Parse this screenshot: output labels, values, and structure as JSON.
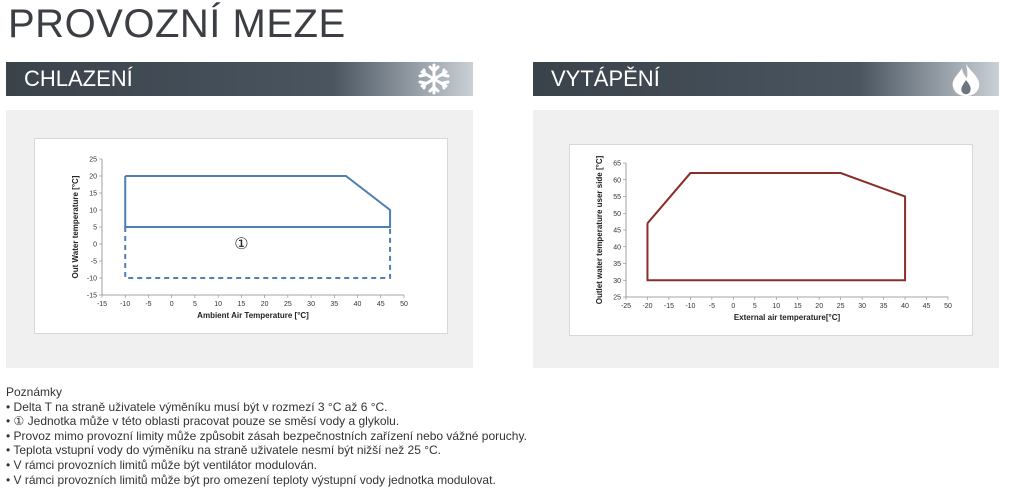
{
  "page_title": "PROVOZNÍ MEZE",
  "sections": {
    "cooling": {
      "title": "CHLAZENÍ",
      "icon": "snowflake-icon"
    },
    "heating": {
      "title": "VYTÁPĚNÍ",
      "icon": "flame-icon"
    }
  },
  "colors": {
    "cooling_line": "#4f7fb3",
    "heating_line": "#8b2e2a",
    "header_bar": "#3a424a",
    "panel_bg": "#f0f0f0"
  },
  "chart_data": [
    {
      "type": "line",
      "xlabel": "Ambient Air Temperature [°C]",
      "ylabel": "Out Water temperature [°C]",
      "xlim": [
        -15,
        50
      ],
      "ylim": [
        -15,
        25
      ],
      "x_ticks": [
        -15,
        -10,
        -5,
        0,
        5,
        10,
        15,
        20,
        25,
        30,
        35,
        40,
        45,
        50
      ],
      "y_ticks": [
        -15,
        -10,
        -5,
        0,
        5,
        10,
        15,
        20,
        25
      ],
      "grid": false,
      "annotation": "①",
      "series": [
        {
          "style": "solid",
          "x": [
            -10,
            37.5,
            47,
            47,
            -10,
            -10
          ],
          "y": [
            20,
            20,
            10,
            5,
            5,
            20
          ]
        },
        {
          "style": "dashed",
          "x": [
            -10,
            -10,
            47,
            47
          ],
          "y": [
            5,
            -10,
            -10,
            5
          ]
        }
      ]
    },
    {
      "type": "line",
      "xlabel": "External air temperature[°C]",
      "ylabel": "Outlet water temperature user side [°C]",
      "xlim": [
        -25,
        50
      ],
      "ylim": [
        25,
        65
      ],
      "x_ticks": [
        -25,
        -20,
        -15,
        -10,
        -5,
        0,
        5,
        10,
        15,
        20,
        25,
        30,
        35,
        40,
        45,
        50
      ],
      "y_ticks": [
        25,
        30,
        35,
        40,
        45,
        50,
        55,
        60,
        65
      ],
      "grid": false,
      "series": [
        {
          "style": "solid",
          "x": [
            -20,
            -10,
            25,
            40,
            40,
            -20,
            -20
          ],
          "y": [
            47,
            62,
            62,
            55,
            30,
            30,
            47
          ]
        }
      ]
    }
  ],
  "notes": {
    "heading": "Poznámky",
    "items": [
      "Delta T na straně uživatele výměníku musí být v rozmezí 3 °C až 6 °C.",
      "① Jednotka může v této oblasti pracovat pouze se směsí vody a glykolu.",
      "Provoz mimo provozní limity může způsobit zásah bezpečnostních zařízení nebo vážné poruchy.",
      "Teplota vstupní vody do výměníku na straně uživatele nesmí být nižší než 25 °C.",
      "V rámci provozních limitů může být ventilátor modulován.",
      "V rámci provozních limitů může být pro omezení teploty výstupní vody jednotka modulovat."
    ]
  }
}
